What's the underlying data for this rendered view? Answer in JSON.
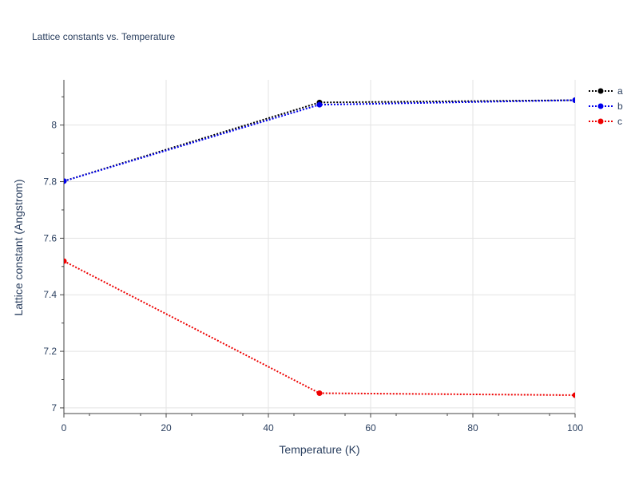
{
  "chart_data": {
    "type": "line",
    "title": "Lattice constants vs. Temperature",
    "xlabel": "Temperature (K)",
    "ylabel": "Lattice constant (Angstrom)",
    "xlim": [
      0,
      100
    ],
    "ylim": [
      6.98,
      8.16
    ],
    "x_ticks": [
      0,
      20,
      40,
      60,
      80,
      100
    ],
    "y_ticks": [
      7,
      7.2,
      7.4,
      7.6,
      7.8,
      8
    ],
    "x_tick_labels": [
      "0",
      "20",
      "40",
      "60",
      "80",
      "100"
    ],
    "y_tick_labels": [
      "7",
      "7.2",
      "7.4",
      "7.6",
      "7.8",
      "8"
    ],
    "grid": true,
    "legend_position": "top-right",
    "line_style": "dotted",
    "series": [
      {
        "name": "a",
        "color": "#000000",
        "x": [
          0,
          50,
          100
        ],
        "y": [
          7.802,
          8.08,
          8.088
        ]
      },
      {
        "name": "b",
        "color": "#0000ee",
        "x": [
          0,
          50,
          100
        ],
        "y": [
          7.802,
          8.072,
          8.088
        ]
      },
      {
        "name": "c",
        "color": "#ee0000",
        "x": [
          0,
          50,
          100
        ],
        "y": [
          7.519,
          7.052,
          7.045
        ]
      }
    ]
  }
}
